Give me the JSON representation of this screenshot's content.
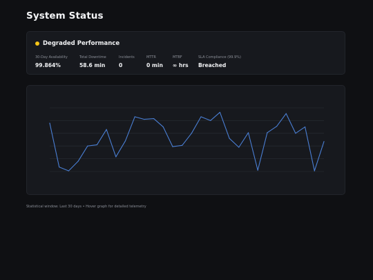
{
  "page": {
    "title": "System Status"
  },
  "status": {
    "label": "Degraded Performance",
    "dot_color": "#f5c518",
    "metrics": [
      {
        "label": "30-Day Availability",
        "value": "99.864%"
      },
      {
        "label": "Total Downtime",
        "value": "58.6 min"
      },
      {
        "label": "Incidents",
        "value": "0"
      },
      {
        "label": "MTTR",
        "value": "0 min"
      },
      {
        "label": "MTBF",
        "value": "∞ hrs"
      },
      {
        "label": "SLA Compliance (99.9%)",
        "value": "Breached"
      }
    ]
  },
  "chart_data": {
    "type": "line",
    "title": "",
    "xlabel": "",
    "ylabel": "",
    "ylim": [
      0,
      100
    ],
    "grid": true,
    "line_color": "#4a7fd4",
    "x": [
      1,
      2,
      3,
      4,
      5,
      6,
      7,
      8,
      9,
      10,
      11,
      12,
      13,
      14,
      15,
      16,
      17,
      18,
      19,
      20,
      21,
      22,
      23,
      24,
      25,
      26,
      27,
      28,
      29,
      30
    ],
    "series": [
      {
        "values": [
          76,
          7,
          1,
          16,
          40,
          42,
          66,
          23,
          48,
          86,
          82,
          83,
          70,
          39,
          41,
          60,
          86,
          80,
          93,
          52,
          38,
          61,
          2,
          61,
          71,
          91,
          60,
          70,
          1,
          47
        ]
      }
    ]
  },
  "footer": {
    "note": "Statistical window: Last 30 days • Hover graph for detailed telemetry"
  }
}
